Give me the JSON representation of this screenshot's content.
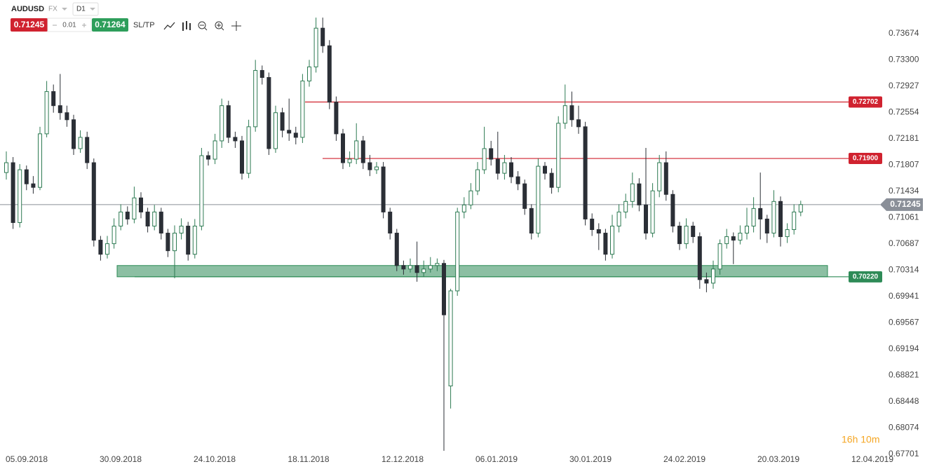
{
  "header": {
    "symbol": "AUDUSD",
    "market": "FX",
    "interval": "D1",
    "bid": "0.71245",
    "step": "0.01",
    "ask": "0.71264",
    "sltp": "SL/TP"
  },
  "timer": "16h 10m",
  "chart_data": {
    "type": "candlestick",
    "ylim": [
      0.6768,
      0.7415
    ],
    "yticks": [
      0.73674,
      {
        "value": 0.733,
        "label": "0.73300"
      },
      0.72927,
      0.72554,
      0.72181,
      0.71807,
      0.71434,
      0.71061,
      0.70687,
      0.70314,
      0.69941,
      0.69567,
      0.69194,
      0.68821,
      0.68448,
      0.68074,
      0.67701
    ],
    "x_labels": [
      "05.09.2018",
      "30.09.2018",
      "24.10.2018",
      "18.11.2018",
      "12.12.2018",
      "06.01.2019",
      "30.01.2019",
      "24.02.2019",
      "20.03.2019",
      "12.04.2019"
    ],
    "up_color": "#2d7a52",
    "down_color": "#2b2f36",
    "last_price": 0.71245,
    "levels": [
      {
        "value": 0.72702,
        "label": "0.72702",
        "color": "#d0222f"
      },
      {
        "value": 0.719,
        "label": "0.71900",
        "color": "#d0222f"
      },
      {
        "value": 0.7022,
        "label": "0.70220",
        "color": "#2e8b57",
        "zone_top": 0.7038
      }
    ],
    "ohlc": [
      [
        0.717,
        0.72,
        0.716,
        0.7184
      ],
      [
        0.7184,
        0.7192,
        0.709,
        0.7099
      ],
      [
        0.7099,
        0.7182,
        0.7092,
        0.7174
      ],
      [
        0.7174,
        0.718,
        0.7145,
        0.7154
      ],
      [
        0.7154,
        0.7165,
        0.714,
        0.7149
      ],
      [
        0.7149,
        0.7235,
        0.7145,
        0.7225
      ],
      [
        0.7225,
        0.73,
        0.722,
        0.7285
      ],
      [
        0.7285,
        0.7295,
        0.7255,
        0.7265
      ],
      [
        0.7265,
        0.731,
        0.7245,
        0.7255
      ],
      [
        0.7255,
        0.7265,
        0.7235,
        0.7245
      ],
      [
        0.7245,
        0.7252,
        0.7195,
        0.7204
      ],
      [
        0.7204,
        0.723,
        0.7198,
        0.722
      ],
      [
        0.722,
        0.7228,
        0.7175,
        0.7184
      ],
      [
        0.7184,
        0.719,
        0.7065,
        0.7074
      ],
      [
        0.7074,
        0.708,
        0.7045,
        0.7054
      ],
      [
        0.7054,
        0.708,
        0.7048,
        0.7069
      ],
      [
        0.7069,
        0.7105,
        0.7062,
        0.7094
      ],
      [
        0.7094,
        0.7125,
        0.7088,
        0.7114
      ],
      [
        0.7114,
        0.7122,
        0.7096,
        0.7104
      ],
      [
        0.7104,
        0.715,
        0.7098,
        0.7134
      ],
      [
        0.7134,
        0.7142,
        0.7105,
        0.7114
      ],
      [
        0.7114,
        0.712,
        0.7085,
        0.7094
      ],
      [
        0.7094,
        0.7124,
        0.7088,
        0.7114
      ],
      [
        0.7114,
        0.712,
        0.7075,
        0.7084
      ],
      [
        0.7084,
        0.709,
        0.705,
        0.7059
      ],
      [
        0.7059,
        0.7095,
        0.702,
        0.7084
      ],
      [
        0.7084,
        0.7105,
        0.7075,
        0.7094
      ],
      [
        0.7094,
        0.71,
        0.7045,
        0.7054
      ],
      [
        0.7054,
        0.7104,
        0.7048,
        0.7094
      ],
      [
        0.7094,
        0.7205,
        0.7088,
        0.7194
      ],
      [
        0.7194,
        0.72,
        0.718,
        0.7189
      ],
      [
        0.7189,
        0.7225,
        0.7182,
        0.7215
      ],
      [
        0.7215,
        0.7275,
        0.7205,
        0.7265
      ],
      [
        0.7265,
        0.7272,
        0.7212,
        0.722
      ],
      [
        0.722,
        0.7228,
        0.7205,
        0.7215
      ],
      [
        0.7215,
        0.7222,
        0.716,
        0.7169
      ],
      [
        0.7169,
        0.7245,
        0.7162,
        0.7235
      ],
      [
        0.7235,
        0.733,
        0.7228,
        0.7315
      ],
      [
        0.7315,
        0.7322,
        0.7295,
        0.7305
      ],
      [
        0.7305,
        0.7312,
        0.7195,
        0.7204
      ],
      [
        0.7204,
        0.7265,
        0.7198,
        0.7255
      ],
      [
        0.7255,
        0.7262,
        0.722,
        0.723
      ],
      [
        0.723,
        0.7275,
        0.7215,
        0.7226
      ],
      [
        0.7226,
        0.7235,
        0.721,
        0.722
      ],
      [
        0.722,
        0.731,
        0.7212,
        0.73
      ],
      [
        0.73,
        0.733,
        0.7292,
        0.732
      ],
      [
        0.732,
        0.739,
        0.7312,
        0.7375
      ],
      [
        0.7375,
        0.739,
        0.734,
        0.735
      ],
      [
        0.735,
        0.7358,
        0.726,
        0.727
      ],
      [
        0.727,
        0.7278,
        0.7215,
        0.7225
      ],
      [
        0.7225,
        0.7232,
        0.7175,
        0.7184
      ],
      [
        0.7184,
        0.72,
        0.7178,
        0.7189
      ],
      [
        0.7189,
        0.724,
        0.7182,
        0.7215
      ],
      [
        0.7215,
        0.7222,
        0.7175,
        0.7184
      ],
      [
        0.7184,
        0.7195,
        0.7165,
        0.7174
      ],
      [
        0.7174,
        0.7185,
        0.7168,
        0.7178
      ],
      [
        0.7178,
        0.7185,
        0.7105,
        0.7114
      ],
      [
        0.7114,
        0.712,
        0.7075,
        0.7084
      ],
      [
        0.7084,
        0.709,
        0.703,
        0.7038
      ],
      [
        0.7038,
        0.7045,
        0.7025,
        0.7033
      ],
      [
        0.7033,
        0.7048,
        0.7028,
        0.7038
      ],
      [
        0.7038,
        0.7072,
        0.7015,
        0.7028
      ],
      [
        0.7028,
        0.7045,
        0.7022,
        0.7033
      ],
      [
        0.7033,
        0.705,
        0.7028,
        0.7038
      ],
      [
        0.7038,
        0.7048,
        0.703,
        0.7041
      ],
      [
        0.7041,
        0.7046,
        0.6775,
        0.6968
      ],
      [
        0.6867,
        0.7005,
        0.6835,
        0.7002
      ],
      [
        0.7002,
        0.712,
        0.6995,
        0.7114
      ],
      [
        0.7114,
        0.7135,
        0.7105,
        0.7124
      ],
      [
        0.7124,
        0.7155,
        0.7118,
        0.7144
      ],
      [
        0.7144,
        0.7185,
        0.7138,
        0.7174
      ],
      [
        0.7174,
        0.7235,
        0.7168,
        0.7204
      ],
      [
        0.7204,
        0.7215,
        0.718,
        0.7189
      ],
      [
        0.7189,
        0.7228,
        0.716,
        0.7169
      ],
      [
        0.7169,
        0.7195,
        0.716,
        0.7184
      ],
      [
        0.7184,
        0.7192,
        0.7155,
        0.7164
      ],
      [
        0.7164,
        0.7172,
        0.7145,
        0.7154
      ],
      [
        0.7154,
        0.716,
        0.711,
        0.7119
      ],
      [
        0.7119,
        0.7125,
        0.7075,
        0.7084
      ],
      [
        0.7084,
        0.719,
        0.7078,
        0.7179
      ],
      [
        0.7179,
        0.7185,
        0.716,
        0.7169
      ],
      [
        0.7169,
        0.7176,
        0.714,
        0.7149
      ],
      [
        0.7149,
        0.725,
        0.7142,
        0.724
      ],
      [
        0.724,
        0.7295,
        0.7232,
        0.7265
      ],
      [
        0.7265,
        0.7285,
        0.7235,
        0.7245
      ],
      [
        0.7245,
        0.7265,
        0.7225,
        0.7235
      ],
      [
        0.7235,
        0.7242,
        0.7095,
        0.7104
      ],
      [
        0.7104,
        0.7112,
        0.708,
        0.7089
      ],
      [
        0.7089,
        0.7098,
        0.706,
        0.7084
      ],
      [
        0.7084,
        0.709,
        0.7045,
        0.7054
      ],
      [
        0.7054,
        0.711,
        0.7048,
        0.7094
      ],
      [
        0.7094,
        0.7125,
        0.7085,
        0.7114
      ],
      [
        0.7114,
        0.714,
        0.7105,
        0.7129
      ],
      [
        0.7129,
        0.717,
        0.712,
        0.7154
      ],
      [
        0.7154,
        0.7162,
        0.7115,
        0.7124
      ],
      [
        0.7124,
        0.7205,
        0.7075,
        0.7084
      ],
      [
        0.7084,
        0.7155,
        0.7078,
        0.7144
      ],
      [
        0.7144,
        0.7195,
        0.7135,
        0.7184
      ],
      [
        0.7184,
        0.72,
        0.713,
        0.7139
      ],
      [
        0.7139,
        0.7145,
        0.7085,
        0.7094
      ],
      [
        0.7094,
        0.71,
        0.706,
        0.7069
      ],
      [
        0.7069,
        0.7105,
        0.7062,
        0.7094
      ],
      [
        0.7094,
        0.71,
        0.707,
        0.7079
      ],
      [
        0.7079,
        0.7085,
        0.7005,
        0.7018
      ],
      [
        0.7018,
        0.7028,
        0.7,
        0.7013
      ],
      [
        0.7013,
        0.7045,
        0.7005,
        0.7033
      ],
      [
        0.7033,
        0.7075,
        0.7025,
        0.7069
      ],
      [
        0.7069,
        0.709,
        0.7062,
        0.7079
      ],
      [
        0.7079,
        0.7085,
        0.704,
        0.7074
      ],
      [
        0.7074,
        0.7095,
        0.7068,
        0.7084
      ],
      [
        0.7084,
        0.712,
        0.7075,
        0.7094
      ],
      [
        0.7094,
        0.7135,
        0.7085,
        0.7119
      ],
      [
        0.7119,
        0.717,
        0.7075,
        0.7104
      ],
      [
        0.7104,
        0.711,
        0.707,
        0.7084
      ],
      [
        0.7084,
        0.7145,
        0.7078,
        0.7129
      ],
      [
        0.7129,
        0.7136,
        0.7065,
        0.7079
      ],
      [
        0.7079,
        0.7098,
        0.707,
        0.7089
      ],
      [
        0.7089,
        0.7125,
        0.7082,
        0.7114
      ],
      [
        0.7114,
        0.713,
        0.7108,
        0.71245
      ]
    ]
  }
}
